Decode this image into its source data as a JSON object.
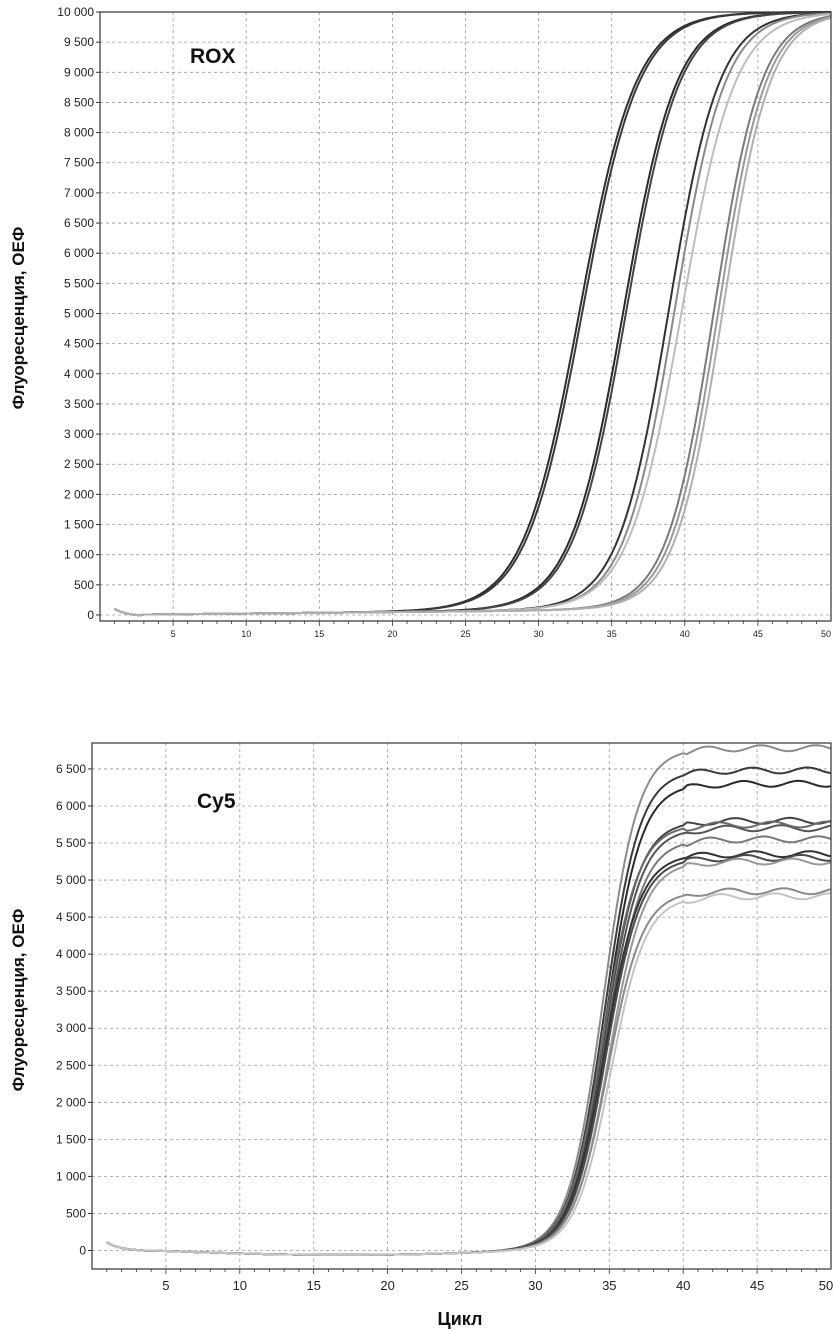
{
  "chart_data": [
    {
      "type": "line",
      "title": "ROX",
      "ylabel": "Флуоресценция, ОЕФ",
      "xlabel": "",
      "xlim": [
        0,
        50
      ],
      "ylim": [
        -100,
        10000
      ],
      "grid": true,
      "x_ticks": [
        "5",
        "10",
        "15",
        "20",
        "25",
        "30",
        "35",
        "40",
        "45",
        "50"
      ],
      "y_ticks": [
        "0",
        "500",
        "1 000",
        "1 500",
        "2 000",
        "2 500",
        "3 000",
        "3 500",
        "4 000",
        "4 500",
        "5 000",
        "5 500",
        "6 000",
        "6 500",
        "7 000",
        "7 500",
        "8 000",
        "8 500",
        "9 000",
        "9 500",
        "10 000"
      ],
      "series": [
        {
          "midpoint": 32.8,
          "slope": 0.52,
          "plateau": 10000,
          "color": "#2e2e2e"
        },
        {
          "midpoint": 33.0,
          "slope": 0.52,
          "plateau": 10000,
          "color": "#3a3a3a"
        },
        {
          "midpoint": 35.8,
          "slope": 0.55,
          "plateau": 10000,
          "color": "#2a2a2a"
        },
        {
          "midpoint": 36.0,
          "slope": 0.55,
          "plateau": 10000,
          "color": "#444444"
        },
        {
          "midpoint": 38.9,
          "slope": 0.58,
          "plateau": 10000,
          "color": "#333333"
        },
        {
          "midpoint": 39.3,
          "slope": 0.58,
          "plateau": 10000,
          "color": "#8a8a8a"
        },
        {
          "midpoint": 39.8,
          "slope": 0.55,
          "plateau": 10000,
          "color": "#bdbdbd"
        },
        {
          "midpoint": 42.0,
          "slope": 0.62,
          "plateau": 10000,
          "color": "#7a7a7a"
        },
        {
          "midpoint": 42.3,
          "slope": 0.62,
          "plateau": 10000,
          "color": "#999999"
        },
        {
          "midpoint": 42.6,
          "slope": 0.62,
          "plateau": 10000,
          "color": "#b0b0b0"
        }
      ]
    },
    {
      "type": "line",
      "title": "Cy5",
      "ylabel": "Флуоресценция, ОЕФ",
      "xlabel": "Цикл",
      "xlim": [
        0,
        50
      ],
      "ylim": [
        -250,
        6850
      ],
      "grid": true,
      "x_ticks": [
        "5",
        "10",
        "15",
        "20",
        "25",
        "30",
        "35",
        "40",
        "45",
        "50"
      ],
      "y_ticks": [
        "0",
        "500",
        "1 000",
        "1 500",
        "2 000",
        "2 500",
        "3 000",
        "3 500",
        "4 000",
        "4 500",
        "5 000",
        "5 500",
        "6 000",
        "6 500"
      ],
      "series": [
        {
          "midpoint": 34.6,
          "slope": 0.85,
          "plateau": 6780,
          "color": "#8c8c8c"
        },
        {
          "midpoint": 34.7,
          "slope": 0.85,
          "plateau": 6480,
          "color": "#3a3a3a"
        },
        {
          "midpoint": 34.8,
          "slope": 0.85,
          "plateau": 6300,
          "color": "#2a2a2a"
        },
        {
          "midpoint": 34.7,
          "slope": 0.85,
          "plateau": 5800,
          "color": "#444444"
        },
        {
          "midpoint": 34.8,
          "slope": 0.85,
          "plateau": 5700,
          "color": "#555555"
        },
        {
          "midpoint": 34.6,
          "slope": 0.85,
          "plateau": 5750,
          "color": "#6a6a6a"
        },
        {
          "midpoint": 34.9,
          "slope": 0.85,
          "plateau": 5550,
          "color": "#7a7a7a"
        },
        {
          "midpoint": 34.7,
          "slope": 0.85,
          "plateau": 5350,
          "color": "#333333"
        },
        {
          "midpoint": 34.8,
          "slope": 0.85,
          "plateau": 5300,
          "color": "#4a4a4a"
        },
        {
          "midpoint": 35.0,
          "slope": 0.85,
          "plateau": 5250,
          "color": "#999999"
        },
        {
          "midpoint": 34.9,
          "slope": 0.85,
          "plateau": 4850,
          "color": "#8a8a8a"
        },
        {
          "midpoint": 35.1,
          "slope": 0.85,
          "plateau": 4780,
          "color": "#c4c4c4"
        }
      ]
    }
  ]
}
